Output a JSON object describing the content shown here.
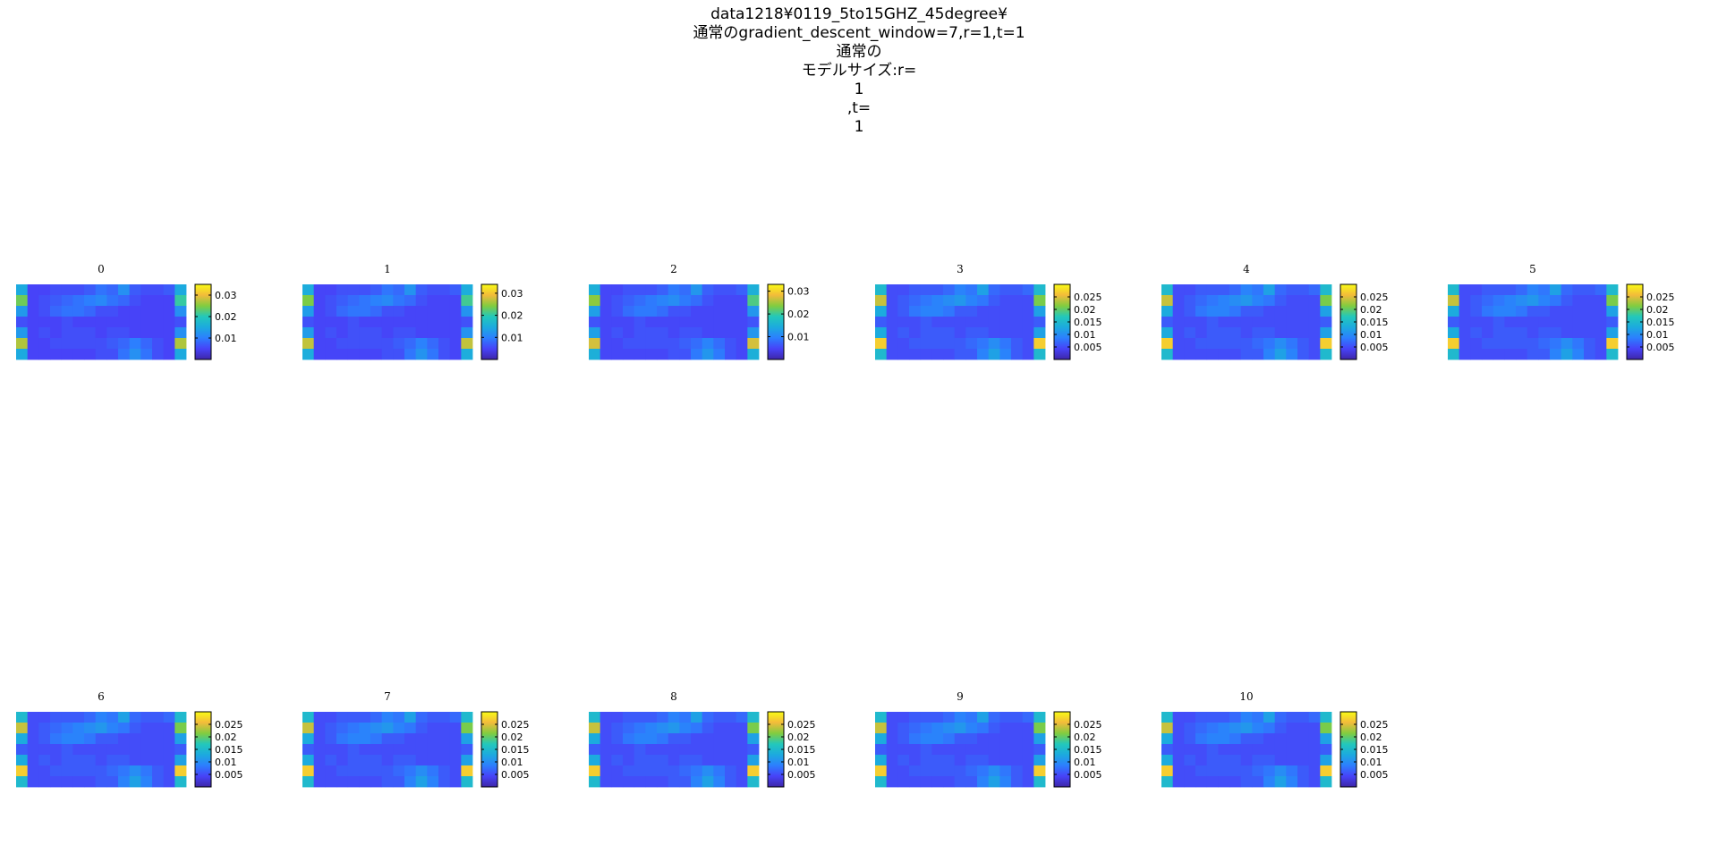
{
  "figure_title": [
    "data1218¥0119_5to15GHZ_45degree¥",
    "通常のgradient_descent_window=7,r=1,t=1",
    "通常の",
    "モデルサイズ:r=",
    "1",
    ",t=",
    "1"
  ],
  "colors": {
    "parula": [
      "#3e26a8",
      "#4743f8",
      "#2c7ffe",
      "#1caadf",
      "#23c8bb",
      "#82cc3f",
      "#f3bb3b",
      "#f9fb15"
    ],
    "frame": "#000000"
  },
  "chart_data": [
    {
      "type": "heatmap",
      "title": "0",
      "clim": [
        0,
        0.035
      ],
      "colorbar_ticks": [
        "0.01",
        "0.02",
        "0.03"
      ],
      "colorbar_values": [
        0.01,
        0.02,
        0.03
      ]
    },
    {
      "type": "heatmap",
      "title": "1",
      "clim": [
        0,
        0.034
      ],
      "colorbar_ticks": [
        "0.01",
        "0.02",
        "0.03"
      ],
      "colorbar_values": [
        0.01,
        0.02,
        0.03
      ]
    },
    {
      "type": "heatmap",
      "title": "2",
      "clim": [
        0,
        0.033
      ],
      "colorbar_ticks": [
        "0.01",
        "0.02",
        "0.03"
      ],
      "colorbar_values": [
        0.01,
        0.02,
        0.03
      ]
    },
    {
      "type": "heatmap",
      "title": "3",
      "clim": [
        0,
        0.03
      ],
      "colorbar_ticks": [
        "0.005",
        "0.01",
        "0.015",
        "0.02",
        "0.025"
      ],
      "colorbar_values": [
        0.005,
        0.01,
        0.015,
        0.02,
        0.025
      ]
    },
    {
      "type": "heatmap",
      "title": "4",
      "clim": [
        0,
        0.03
      ],
      "colorbar_ticks": [
        "0.005",
        "0.01",
        "0.015",
        "0.02",
        "0.025"
      ],
      "colorbar_values": [
        0.005,
        0.01,
        0.015,
        0.02,
        0.025
      ]
    },
    {
      "type": "heatmap",
      "title": "5",
      "clim": [
        0,
        0.03
      ],
      "colorbar_ticks": [
        "0.005",
        "0.01",
        "0.015",
        "0.02",
        "0.025"
      ],
      "colorbar_values": [
        0.005,
        0.01,
        0.015,
        0.02,
        0.025
      ]
    },
    {
      "type": "heatmap",
      "title": "6",
      "clim": [
        0,
        0.03
      ],
      "colorbar_ticks": [
        "0.005",
        "0.01",
        "0.015",
        "0.02",
        "0.025"
      ],
      "colorbar_values": [
        0.005,
        0.01,
        0.015,
        0.02,
        0.025
      ]
    },
    {
      "type": "heatmap",
      "title": "7",
      "clim": [
        0,
        0.03
      ],
      "colorbar_ticks": [
        "0.005",
        "0.01",
        "0.015",
        "0.02",
        "0.025"
      ],
      "colorbar_values": [
        0.005,
        0.01,
        0.015,
        0.02,
        0.025
      ]
    },
    {
      "type": "heatmap",
      "title": "8",
      "clim": [
        0,
        0.03
      ],
      "colorbar_ticks": [
        "0.005",
        "0.01",
        "0.015",
        "0.02",
        "0.025"
      ],
      "colorbar_values": [
        0.005,
        0.01,
        0.015,
        0.02,
        0.025
      ]
    },
    {
      "type": "heatmap",
      "title": "9",
      "clim": [
        0,
        0.03
      ],
      "colorbar_ticks": [
        "0.005",
        "0.01",
        "0.015",
        "0.02",
        "0.025"
      ],
      "colorbar_values": [
        0.005,
        0.01,
        0.015,
        0.02,
        0.025
      ]
    },
    {
      "type": "heatmap",
      "title": "10",
      "clim": [
        0,
        0.03
      ],
      "colorbar_ticks": [
        "0.005",
        "0.01",
        "0.015",
        "0.02",
        "0.025"
      ],
      "colorbar_values": [
        0.005,
        0.01,
        0.015,
        0.02,
        0.025
      ]
    }
  ],
  "heatmap_values": [
    [
      0.015,
      0.005,
      0.005,
      0.006,
      0.006,
      0.006,
      0.007,
      0.009,
      0.008,
      0.012,
      0.007,
      0.006,
      0.006,
      0.007,
      0.015
    ],
    [
      0.024,
      0.005,
      0.006,
      0.007,
      0.008,
      0.009,
      0.01,
      0.011,
      0.009,
      0.008,
      0.006,
      0.005,
      0.005,
      0.005,
      0.021
    ],
    [
      0.013,
      0.005,
      0.006,
      0.008,
      0.009,
      0.009,
      0.008,
      0.006,
      0.006,
      0.005,
      0.005,
      0.005,
      0.005,
      0.005,
      0.012
    ],
    [
      0.006,
      0.005,
      0.005,
      0.005,
      0.006,
      0.005,
      0.005,
      0.005,
      0.005,
      0.005,
      0.005,
      0.005,
      0.005,
      0.005,
      0.006
    ],
    [
      0.013,
      0.005,
      0.006,
      0.005,
      0.006,
      0.006,
      0.006,
      0.005,
      0.006,
      0.006,
      0.005,
      0.005,
      0.005,
      0.005,
      0.012
    ],
    [
      0.027,
      0.005,
      0.005,
      0.006,
      0.006,
      0.006,
      0.006,
      0.006,
      0.007,
      0.008,
      0.01,
      0.008,
      0.006,
      0.005,
      0.027
    ],
    [
      0.015,
      0.005,
      0.005,
      0.005,
      0.005,
      0.005,
      0.005,
      0.006,
      0.006,
      0.009,
      0.012,
      0.009,
      0.006,
      0.005,
      0.015
    ]
  ]
}
